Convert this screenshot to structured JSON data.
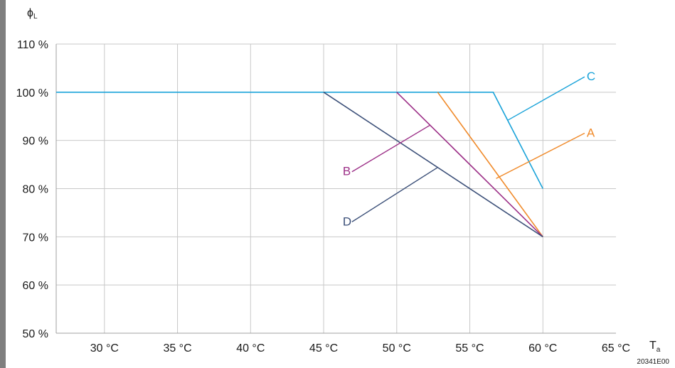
{
  "chart_data": {
    "type": "line",
    "y_axis_label": {
      "symbol": "ϕ",
      "subscript": "L"
    },
    "x_axis_label": {
      "symbol": "T",
      "subscript": "a"
    },
    "figure_code": "20341E00",
    "xlim": [
      26.7,
      65
    ],
    "ylim": [
      50,
      110
    ],
    "x_ticks": [
      30,
      35,
      40,
      45,
      50,
      55,
      60,
      65
    ],
    "x_tick_labels": [
      "30 °C",
      "35 °C",
      "40 °C",
      "45 °C",
      "50 °C",
      "55 °C",
      "60 °C",
      "65 °C"
    ],
    "y_ticks": [
      50,
      60,
      70,
      80,
      90,
      100,
      110
    ],
    "y_tick_labels": [
      "50 %",
      "60 %",
      "70 %",
      "80 %",
      "90 %",
      "100 %",
      "110 %"
    ],
    "grid": true,
    "series": [
      {
        "name": "C",
        "color": "#1aa3d9",
        "x": [
          26.7,
          56.6,
          60
        ],
        "y": [
          100,
          100,
          80
        ],
        "label_anchor": [
          57.6,
          94.2
        ],
        "label_pos": [
          63,
          103.5
        ]
      },
      {
        "name": "A",
        "color": "#f08a2a",
        "x": [
          52.8,
          60
        ],
        "y": [
          100,
          70
        ],
        "label_anchor": [
          56.8,
          82.1
        ],
        "label_pos": [
          63,
          91.8
        ]
      },
      {
        "name": "B",
        "color": "#9c2f87",
        "x": [
          50,
          60
        ],
        "y": [
          100,
          70
        ],
        "label_anchor": [
          52.3,
          93.2
        ],
        "label_pos": [
          46.5,
          83.8
        ]
      },
      {
        "name": "D",
        "color": "#3b4f78",
        "x": [
          45,
          60
        ],
        "y": [
          100,
          70
        ],
        "label_anchor": [
          52.8,
          84.4
        ],
        "label_pos": [
          46.5,
          73.4
        ]
      }
    ]
  }
}
